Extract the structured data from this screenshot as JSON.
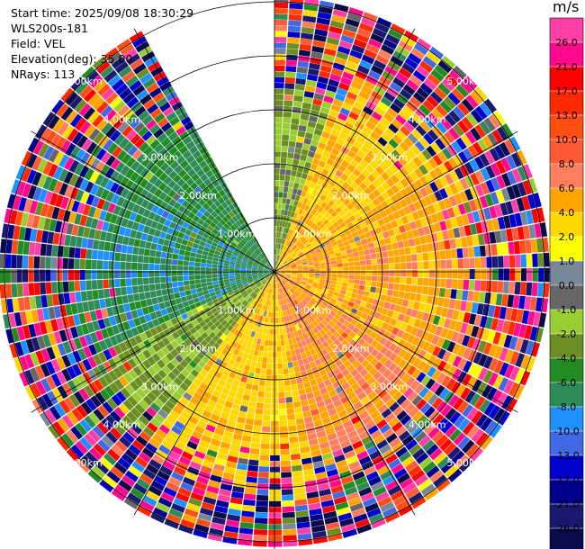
{
  "info": {
    "start_time": "Start time: 2025/09/08 18:30:29",
    "instrument": "WLS200s-181",
    "field": "Field: VEL",
    "elevation": "Elevation(deg): 35.00",
    "nrays": "NRays: 113"
  },
  "colorbar": {
    "unit": "m/s",
    "boundaries": [
      30.0,
      26.0,
      21.0,
      17.0,
      13.0,
      10.0,
      8.0,
      6.0,
      4.0,
      2.0,
      1.0,
      0.0,
      -1.0,
      -2.0,
      -4.0,
      -6.0,
      -8.0,
      -10.0,
      -13.0,
      -17.0,
      -21.0,
      -26.0,
      -30.0
    ],
    "tick_labels": [
      "26.0",
      "21.0",
      "17.0",
      "13.0",
      "10.0",
      "8.0",
      "6.0",
      "4.0",
      "2.0",
      "1.0",
      "0.0",
      "-1.0",
      "-2.0",
      "-4.0",
      "-6.0",
      "-8.0",
      "-10.0",
      "-13.0",
      "-17.0",
      "-21.0",
      "-26.0",
      "-30.0"
    ],
    "colors": [
      "#ff3fa5",
      "#ff0a8c",
      "#ff0000",
      "#ff2a00",
      "#ff4e10",
      "#ff5a36",
      "#ff7f5c",
      "#ffa500",
      "#ffd700",
      "#ffff00",
      "#77889a",
      "#666666",
      "#9acd32",
      "#6b8e23",
      "#228b22",
      "#2e8b57",
      "#1e90ff",
      "#4169e1",
      "#0000cd",
      "#00008b",
      "#191970",
      "#0b0b4a"
    ]
  },
  "chart_data": {
    "type": "ppi",
    "field": "VEL",
    "units": "m/s",
    "range_rings_km": [
      1,
      2,
      3,
      4,
      5
    ],
    "range_ring_labels": [
      "1.00km",
      "2.00km",
      "3.00km",
      "4.00km",
      "5.00km"
    ],
    "max_range_km": 5.1,
    "azimuth_lines_deg": [
      0,
      30,
      60,
      90,
      120,
      150,
      180,
      210,
      240,
      270,
      300,
      330
    ],
    "missing_sector_deg": [
      331,
      360
    ],
    "velocity_sectors": [
      {
        "az_from": 0,
        "az_to": 20,
        "near_range_velocity": -2.0,
        "far_field": "mixed"
      },
      {
        "az_from": 20,
        "az_to": 60,
        "near_range_velocity": 4.0,
        "far_field": "mixed"
      },
      {
        "az_from": 60,
        "az_to": 120,
        "near_range_velocity": 5.0,
        "far_field": "mixed"
      },
      {
        "az_from": 120,
        "az_to": 170,
        "near_range_velocity": 6.0,
        "far_field": "mixed"
      },
      {
        "az_from": 170,
        "az_to": 215,
        "near_range_velocity": 3.5,
        "far_field": "mixed"
      },
      {
        "az_from": 215,
        "az_to": 245,
        "near_range_velocity": -2.5,
        "far_field": "mixed"
      },
      {
        "az_from": 245,
        "az_to": 300,
        "near_range_velocity": -7.0,
        "far_field": "mixed"
      },
      {
        "az_from": 300,
        "az_to": 330,
        "near_range_velocity": -6.0,
        "far_field": "mixed"
      }
    ]
  }
}
